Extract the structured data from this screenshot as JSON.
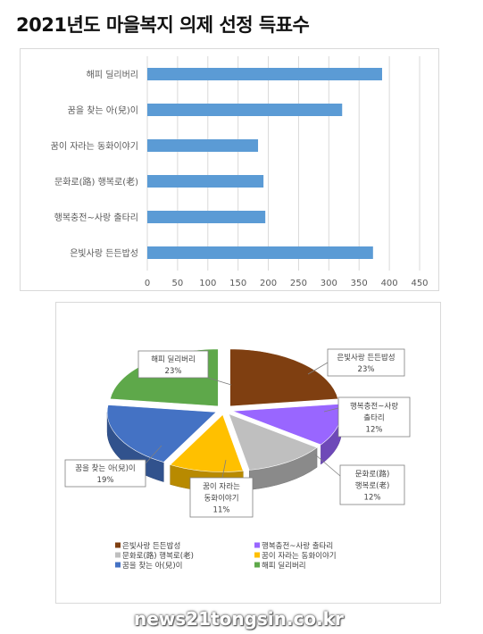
{
  "page": {
    "title": "2021년도 마을복지 의제 선정 득표수"
  },
  "chart_data": [
    {
      "type": "bar",
      "orientation": "horizontal",
      "categories": [
        "해피 딜리버리",
        "꿈을 찾는 아(兒)이",
        "꿈이 자라는 동화이야기",
        "문화로(路) 행복로(老)",
        "행복충전~사랑 출타리",
        "은빛사랑 든든밥성"
      ],
      "values": [
        388,
        322,
        183,
        192,
        195,
        373
      ],
      "xlim": [
        0,
        450
      ],
      "xticks": [
        "0",
        "50",
        "100",
        "150",
        "200",
        "250",
        "300",
        "350",
        "400",
        "450"
      ],
      "grid": true,
      "color": "#5b9bd5"
    },
    {
      "type": "pie",
      "style": "3d-exploded",
      "slices": [
        {
          "label": "은빛사랑 든든밥성",
          "value": 23,
          "pct_label": "23%",
          "color": "#7f3f11"
        },
        {
          "label": "행복충전~사랑 출타리",
          "value": 12,
          "pct_label": "12%",
          "color": "#9966ff"
        },
        {
          "label": "문화로(路) 행복로(老)",
          "value": 12,
          "pct_label": "12%",
          "color": "#bfbfbf"
        },
        {
          "label": "꿈이 자라는 동화이야기",
          "value": 11,
          "pct_label": "11%",
          "color": "#ffc000"
        },
        {
          "label": "꿈을 찾는 아(兒)이",
          "value": 19,
          "pct_label": "19%",
          "color": "#4472c4"
        },
        {
          "label": "해피 딜리버리",
          "value": 23,
          "pct_label": "23%",
          "color": "#5ea84a"
        }
      ],
      "callouts": [
        {
          "lines": [
            "해피 딜리버리",
            "23%"
          ]
        },
        {
          "lines": [
            "은빛사랑 든든밥성",
            "23%"
          ]
        },
        {
          "lines": [
            "행복충전~사랑",
            "출타리",
            "12%"
          ]
        },
        {
          "lines": [
            "문화로(路)",
            "행복로(老)",
            "12%"
          ]
        },
        {
          "lines": [
            "꿈이 자라는",
            "동화이야기",
            "11%"
          ]
        },
        {
          "lines": [
            "꿈을 찾는 아(兒)이",
            "19%"
          ]
        }
      ],
      "legend_position": "bottom",
      "legend": [
        "은빛사랑 든든밥성",
        "행복충전~사랑 출타리",
        "문화로(路) 행복로(老)",
        "꿈이 자라는 동화이야기",
        "꿈을 찾는 아(兒)이",
        "해피 딜리버리"
      ]
    }
  ],
  "watermark": "news21tongsin.co.kr"
}
